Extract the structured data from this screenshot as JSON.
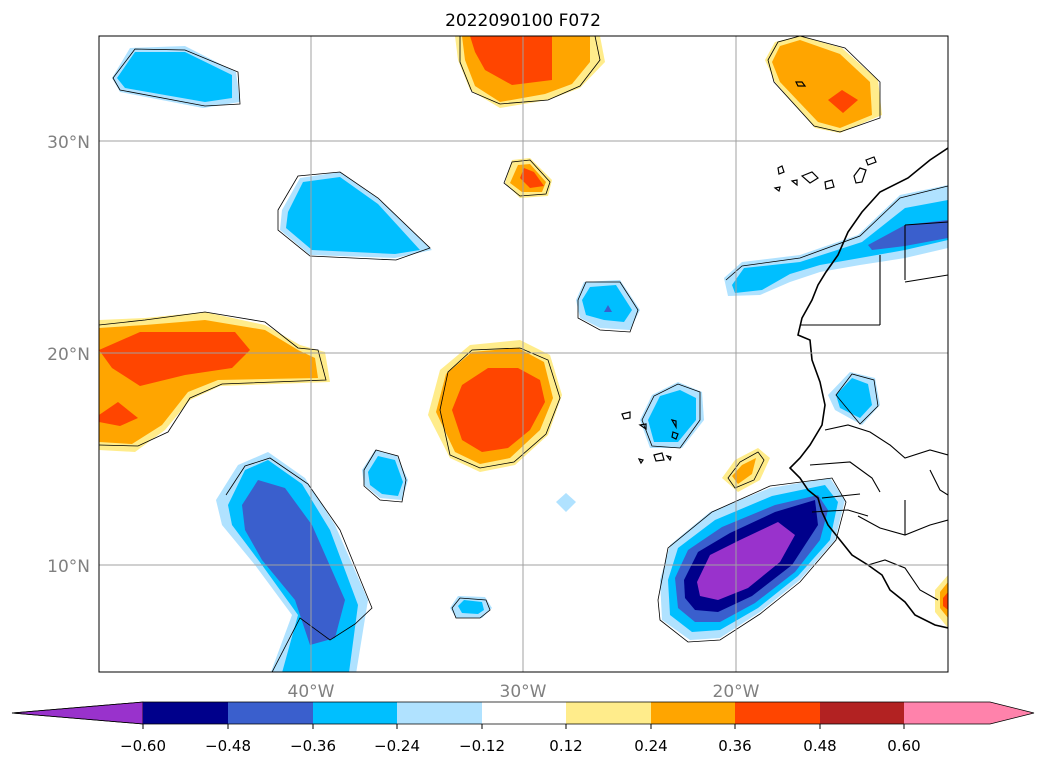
{
  "title": "2022090100 F072",
  "map": {
    "lat_range": [
      5,
      35
    ],
    "lon_range": [
      -50,
      -10
    ],
    "lat_ticks": [
      {
        "value": 30,
        "label": "30°N"
      },
      {
        "value": 20,
        "label": "20°N"
      },
      {
        "value": 10,
        "label": "10°N"
      }
    ],
    "lon_ticks": [
      {
        "value": -40,
        "label": "40°W"
      },
      {
        "value": -30,
        "label": "30°W"
      },
      {
        "value": -20,
        "label": "20°W"
      }
    ],
    "tick_color": "#808080",
    "grid": true,
    "coastlines": true,
    "country_borders": true
  },
  "colorbar": {
    "orientation": "horizontal",
    "extend": "both",
    "ticks": [
      "−0.60",
      "−0.48",
      "−0.36",
      "−0.24",
      "−0.12",
      "0.12",
      "0.24",
      "0.36",
      "0.48",
      "0.60"
    ],
    "colors": [
      "#9932cc",
      "#00008b",
      "#3a5fcd",
      "#00bfff",
      "#b0e2ff",
      "#ffffff",
      "#ffec8b",
      "#ffa500",
      "#ff4500",
      "#b22222",
      "#ff82ab"
    ]
  }
}
